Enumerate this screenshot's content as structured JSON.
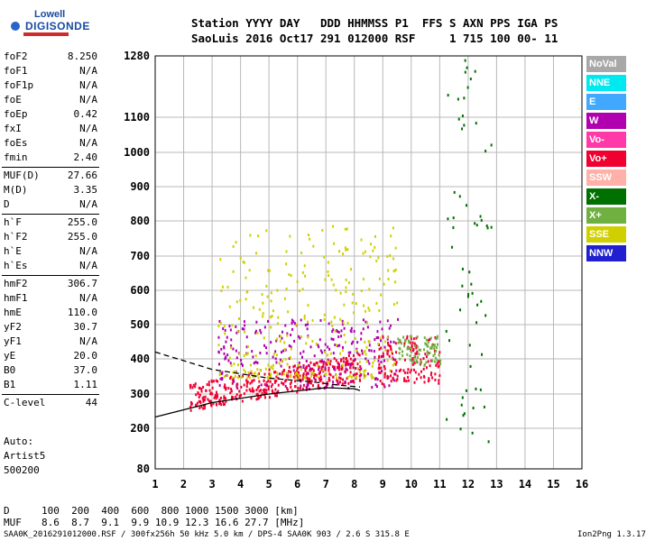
{
  "logo": {
    "line1": "Lowell",
    "line2": "DIGISONDE"
  },
  "header": {
    "line1": "Station YYYY DAY   DDD HHMMSS P1  FFS S AXN PPS IGA PS",
    "line2": "SaoLuis 2016 Oct17 291 012000 RSF     1 715 100 00- 11"
  },
  "params": [
    {
      "label": "foF2",
      "value": "8.250"
    },
    {
      "label": "foF1",
      "value": "N/A"
    },
    {
      "label": "foF1p",
      "value": "N/A"
    },
    {
      "label": "foE",
      "value": "N/A"
    },
    {
      "label": "foEp",
      "value": "0.42"
    },
    {
      "label": "fxI",
      "value": "N/A"
    },
    {
      "label": "foEs",
      "value": "N/A"
    },
    {
      "label": "fmin",
      "value": "2.40"
    },
    {
      "label": "MUF(D)",
      "value": "27.66"
    },
    {
      "label": "M(D)",
      "value": "3.35"
    },
    {
      "label": "D",
      "value": "N/A"
    },
    {
      "label": "h`F",
      "value": "255.0"
    },
    {
      "label": "h`F2",
      "value": "255.0"
    },
    {
      "label": "h`E",
      "value": "N/A"
    },
    {
      "label": "h`Es",
      "value": "N/A"
    },
    {
      "label": "hmF2",
      "value": "306.7"
    },
    {
      "label": "hmF1",
      "value": "N/A"
    },
    {
      "label": "hmE",
      "value": "110.0"
    },
    {
      "label": "yF2",
      "value": "30.7"
    },
    {
      "label": "yF1",
      "value": "N/A"
    },
    {
      "label": "yE",
      "value": "20.0"
    },
    {
      "label": "B0",
      "value": "37.0"
    },
    {
      "label": "B1",
      "value": "1.11"
    },
    {
      "label": "C-level",
      "value": "44"
    }
  ],
  "auto": {
    "line1": "Auto:",
    "line2": "Artist5",
    "line3": "500200"
  },
  "legend": [
    {
      "label": "NoVal",
      "color": "#a8a8a8"
    },
    {
      "label": "NNE",
      "color": "#00e8f0"
    },
    {
      "label": "E",
      "color": "#40a8ff"
    },
    {
      "label": "W",
      "color": "#b000b0"
    },
    {
      "label": "Vo-",
      "color": "#ff3aa8"
    },
    {
      "label": "Vo+",
      "color": "#f00030"
    },
    {
      "label": "SSW",
      "color": "#ffb0a8"
    },
    {
      "label": "X-",
      "color": "#007000"
    },
    {
      "label": "X+",
      "color": "#70b040"
    },
    {
      "label": "SSE",
      "color": "#d0d000"
    },
    {
      "label": "NNW",
      "color": "#2020d0"
    }
  ],
  "bottom": {
    "d_label": "D",
    "d_values": "100  200  400  600  800 1000 1500 3000 [km]",
    "muf_label": "MUF",
    "muf_values": "8.6  8.7  9.1  9.9 10.9 12.3 16.6 27.7 [MHz]"
  },
  "footer": {
    "left": "SAA0K_2016291012000.RSF / 300fx256h 50 kHz 5.0 km / DPS-4 SAA0K 903 / 2.6 S 315.8 E",
    "right": "Ion2Png 1.3.17"
  },
  "chart_data": {
    "type": "scatter",
    "x_ticks": [
      "1",
      "2",
      "3",
      "4",
      "5",
      "6",
      "7",
      "8",
      "9",
      "10",
      "11",
      "12",
      "13",
      "14",
      "15",
      "16"
    ],
    "y_ticks": [
      "80",
      "200",
      "300",
      "400",
      "500",
      "600",
      "700",
      "800",
      "900",
      "1000",
      "1100",
      "1280"
    ],
    "xlim": [
      1,
      16
    ],
    "y_scale": "non-linear (virtual height)",
    "ylim": [
      80,
      1280
    ],
    "grid": true,
    "legend_placement": "right",
    "traces": [
      {
        "name": "trace-1",
        "style": "solid",
        "color": "#000000",
        "points": [
          [
            1,
            233
          ],
          [
            3,
            275
          ],
          [
            5,
            300
          ],
          [
            7,
            318
          ],
          [
            8,
            315
          ],
          [
            8.2,
            310
          ]
        ]
      },
      {
        "name": "trace-2",
        "style": "dashed",
        "color": "#000000",
        "points": [
          [
            1,
            420
          ],
          [
            3,
            370
          ],
          [
            5,
            345
          ],
          [
            6.5,
            335
          ],
          [
            7.5,
            325
          ],
          [
            8.2,
            320
          ]
        ]
      }
    ],
    "point_clusters": [
      {
        "x": [
          2.2,
          8.2
        ],
        "y": [
          255,
          370
        ],
        "color": "#f00030"
      },
      {
        "x": [
          3.2,
          9.5
        ],
        "y": [
          320,
          520
        ],
        "color": "#b000b0"
      },
      {
        "x": [
          3.2,
          9.5
        ],
        "y": [
          350,
          800
        ],
        "color": "#d0d000"
      },
      {
        "x": [
          8.8,
          11.0
        ],
        "y": [
          330,
          470
        ],
        "color": "#f00030"
      },
      {
        "x": [
          9.5,
          11.0
        ],
        "y": [
          380,
          470
        ],
        "color": "#70b040"
      },
      {
        "x": [
          11.2,
          12.8
        ],
        "y": [
          160,
          1280
        ],
        "color": "#007000"
      }
    ]
  }
}
